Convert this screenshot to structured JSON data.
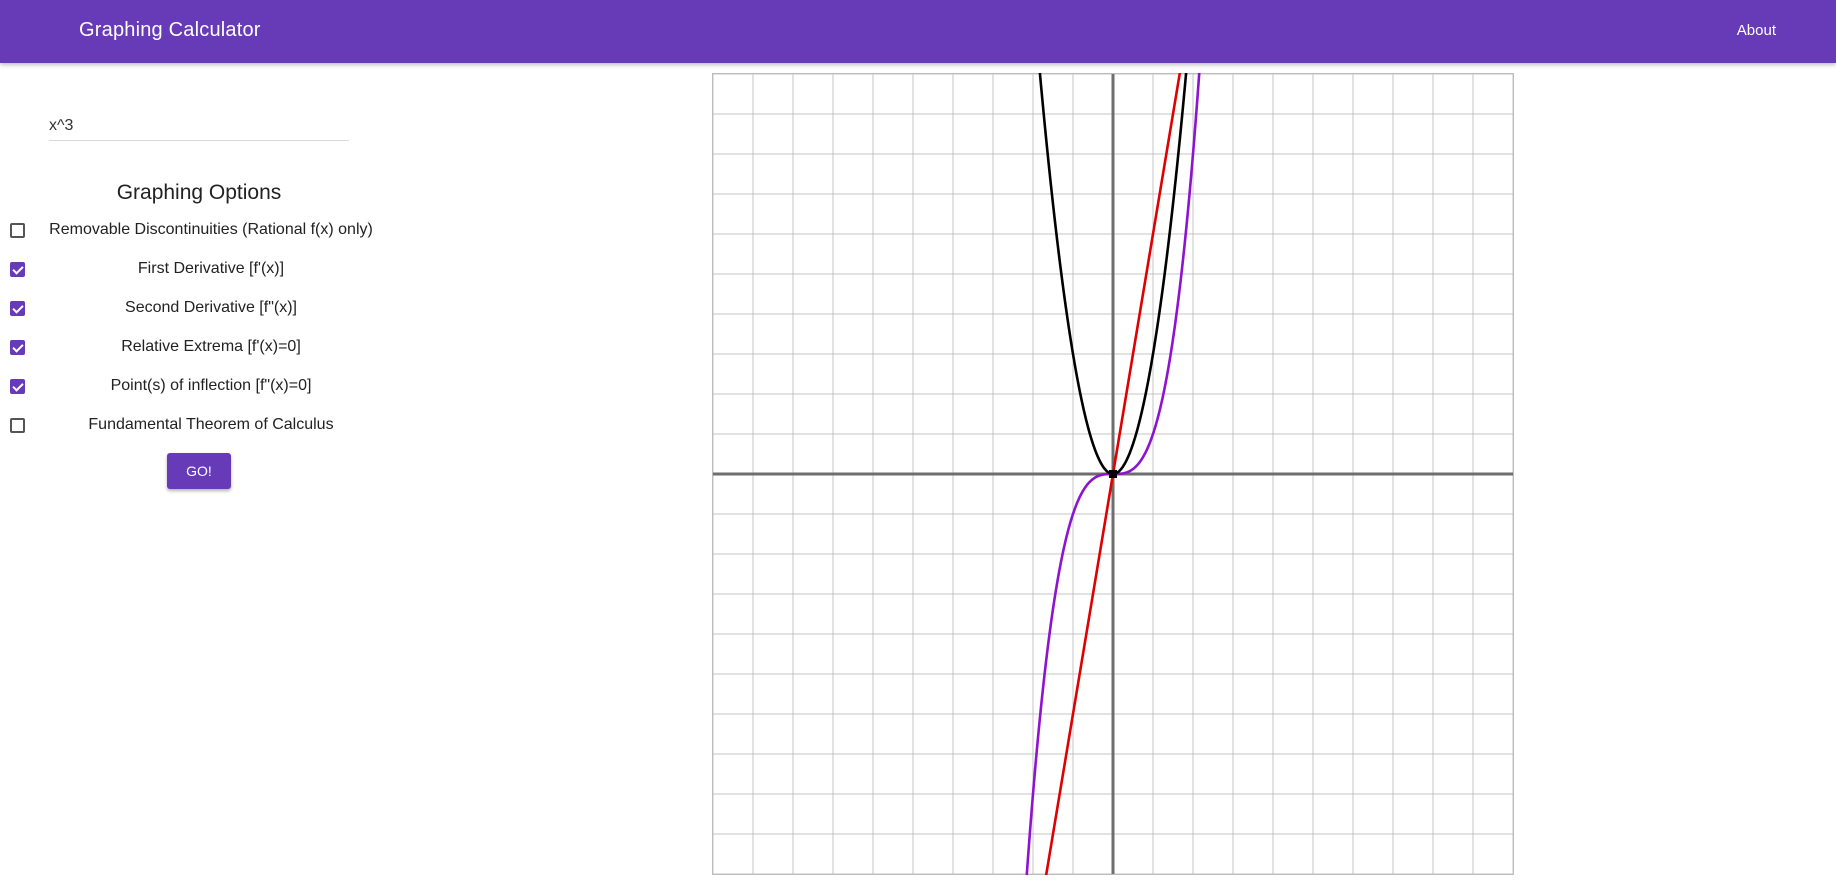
{
  "header": {
    "title": "Graphing Calculator",
    "about_label": "About"
  },
  "input": {
    "value": "x^3"
  },
  "options": {
    "heading": "Graphing Options",
    "items": [
      {
        "label": "Removable Discontinuities (Rational f(x) only)",
        "checked": false
      },
      {
        "label": "First Derivative [f'(x)]",
        "checked": true
      },
      {
        "label": "Second Derivative [f\"(x)]",
        "checked": true
      },
      {
        "label": "Relative Extrema [f'(x)=0]",
        "checked": true
      },
      {
        "label": "Point(s) of inflection [f\"(x)=0]",
        "checked": true
      },
      {
        "label": "Fundamental Theorem of Calculus",
        "checked": false
      }
    ]
  },
  "go_button": {
    "label": "GO!"
  },
  "colors": {
    "accent": "#673ab7",
    "function_curve": "#8e13d1",
    "first_derivative": "#000000",
    "second_derivative": "#e00000",
    "grid": "#c4c4c4",
    "axis": "#6e6e6e"
  },
  "chart_data": {
    "type": "line",
    "xlim": [
      -10,
      10
    ],
    "ylim": [
      -10,
      10
    ],
    "grid": true,
    "series": [
      {
        "expression": "x^3",
        "color": "#8e13d1"
      },
      {
        "expression": "3*x^2",
        "color": "#000000"
      },
      {
        "expression": "6*x",
        "color": "#e00000"
      }
    ],
    "points": [
      {
        "x": 0,
        "y": 0
      }
    ]
  }
}
